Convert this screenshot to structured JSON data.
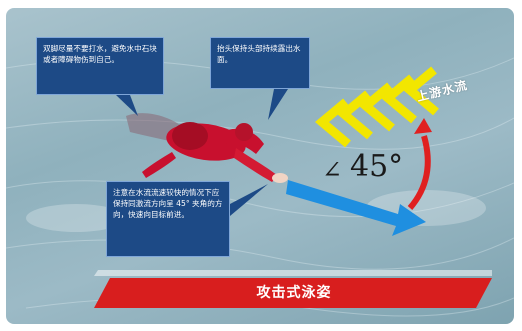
{
  "callouts": {
    "kick": "双脚尽量不要打水，避免水中石块或者障碍物伤到自己。",
    "head": "抬头保持头部持续露出水面。",
    "direction": "注意在水流流速较快的情况下应保持同激流方向呈 45° 夹角的方向，快速向目标前进。"
  },
  "flow_label": "上游水流",
  "angle_symbol": "∠",
  "angle_value": "45°",
  "banner_title": "攻击式泳姿",
  "colors": {
    "callout_bg": "#1d4a86",
    "chevron": "#f2e600",
    "arrow_blue": "#1f8fe0",
    "arc_red": "#e02020",
    "banner_red": "#d81e1e"
  }
}
